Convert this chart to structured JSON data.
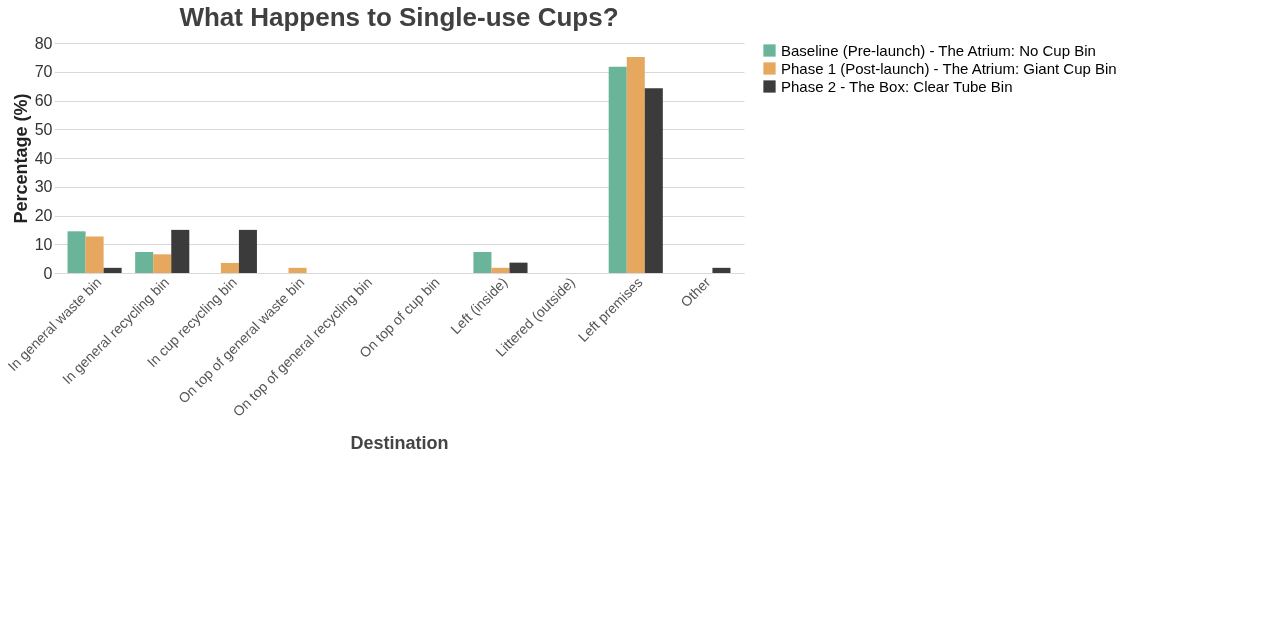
{
  "chart_data": {
    "type": "bar",
    "title": "What Happens to Single-use Cups?",
    "xlabel": "Destination",
    "ylabel": "Percentage (%)",
    "categories": [
      "In general waste bin",
      "In general recycling bin",
      "In cup recycling bin",
      "On top of general waste bin",
      "On top of general recycling bin",
      "On top of cup bin",
      "Left (inside)",
      "Littered (outside)",
      "Left premises",
      "Other"
    ],
    "series": [
      {
        "name": "Baseline (Pre-launch) - The Atrium: No Cup Bin",
        "color": "#6ab49a",
        "values": [
          14.5,
          7.3,
          0,
          0,
          0,
          0,
          7.3,
          0,
          71.7,
          0
        ]
      },
      {
        "name": "Phase 1 (Post-launch) - The Atrium: Giant Cup Bin",
        "color": "#e6a75e",
        "values": [
          12.7,
          6.5,
          3.5,
          1.8,
          0,
          0,
          1.8,
          0,
          75.1,
          0
        ]
      },
      {
        "name": "Phase 2 - The Box: Clear Tube Bin",
        "color": "#3b3b3b",
        "values": [
          1.8,
          15,
          15,
          0,
          0,
          0,
          3.6,
          0,
          64.3,
          1.8
        ]
      }
    ],
    "ylim": [
      0,
      80
    ],
    "yticks": [
      0,
      10,
      20,
      30,
      40,
      50,
      60,
      70,
      80
    ],
    "grid": "y",
    "legend": "right"
  }
}
